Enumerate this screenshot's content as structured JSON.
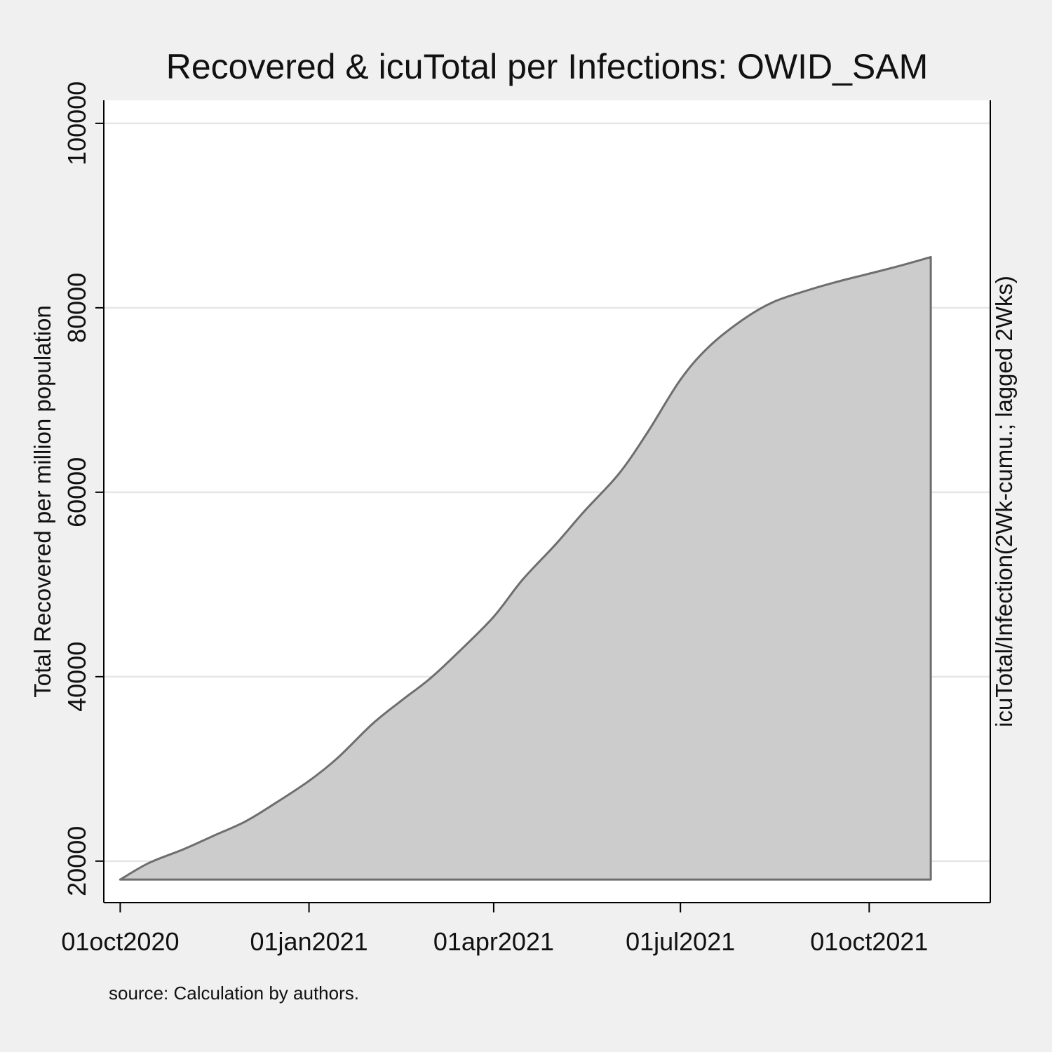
{
  "chart_data": {
    "type": "area",
    "title": "Recovered & icuTotal per Infections: OWID_SAM",
    "ylabel_left": "Total Recovered per million population",
    "ylabel_right": "icuTotal/Infection(2Wk-cumu.; lagged 2Wks)",
    "note": "source: Calculation by authors.",
    "ylim": [
      15500,
      102500
    ],
    "y_ticks": [
      20000,
      40000,
      60000,
      80000,
      100000
    ],
    "y_tick_labels": [
      "20000",
      "40000",
      "60000",
      "80000",
      "100000"
    ],
    "x_range": [
      "2020-09-23",
      "2021-11-29"
    ],
    "x_ticks": [
      "2020-10-01",
      "2021-01-01",
      "2021-04-01",
      "2021-07-01",
      "2021-10-01"
    ],
    "x_tick_labels": [
      "01oct2020",
      "01jan2021",
      "01apr2021",
      "01jul2021",
      "01oct2021"
    ],
    "grid": "horizontal",
    "colors": {
      "fill": "#cccccc",
      "line": "#6e6e6e",
      "plot_bg": "#ffffff",
      "outer_bg": "#f0f0f0",
      "grid": "#e6e6e6"
    },
    "series": [
      {
        "area_base": 18000,
        "x": [
          "2020-10-01",
          "2020-10-15",
          "2020-11-01",
          "2020-11-15",
          "2020-12-01",
          "2020-12-15",
          "2021-01-01",
          "2021-01-15",
          "2021-02-01",
          "2021-02-15",
          "2021-03-01",
          "2021-03-15",
          "2021-04-01",
          "2021-04-15",
          "2021-05-01",
          "2021-05-15",
          "2021-06-01",
          "2021-06-15",
          "2021-07-01",
          "2021-07-15",
          "2021-08-01",
          "2021-08-15",
          "2021-09-01",
          "2021-09-15",
          "2021-10-01",
          "2021-10-15",
          "2021-10-31"
        ],
        "values": [
          18000,
          19800,
          21300,
          22700,
          24300,
          26200,
          28700,
          31200,
          34900,
          37400,
          39800,
          42700,
          46500,
          50500,
          54300,
          57900,
          62000,
          66500,
          72200,
          75800,
          78800,
          80600,
          81900,
          82800,
          83700,
          84500,
          85500
        ]
      }
    ]
  }
}
